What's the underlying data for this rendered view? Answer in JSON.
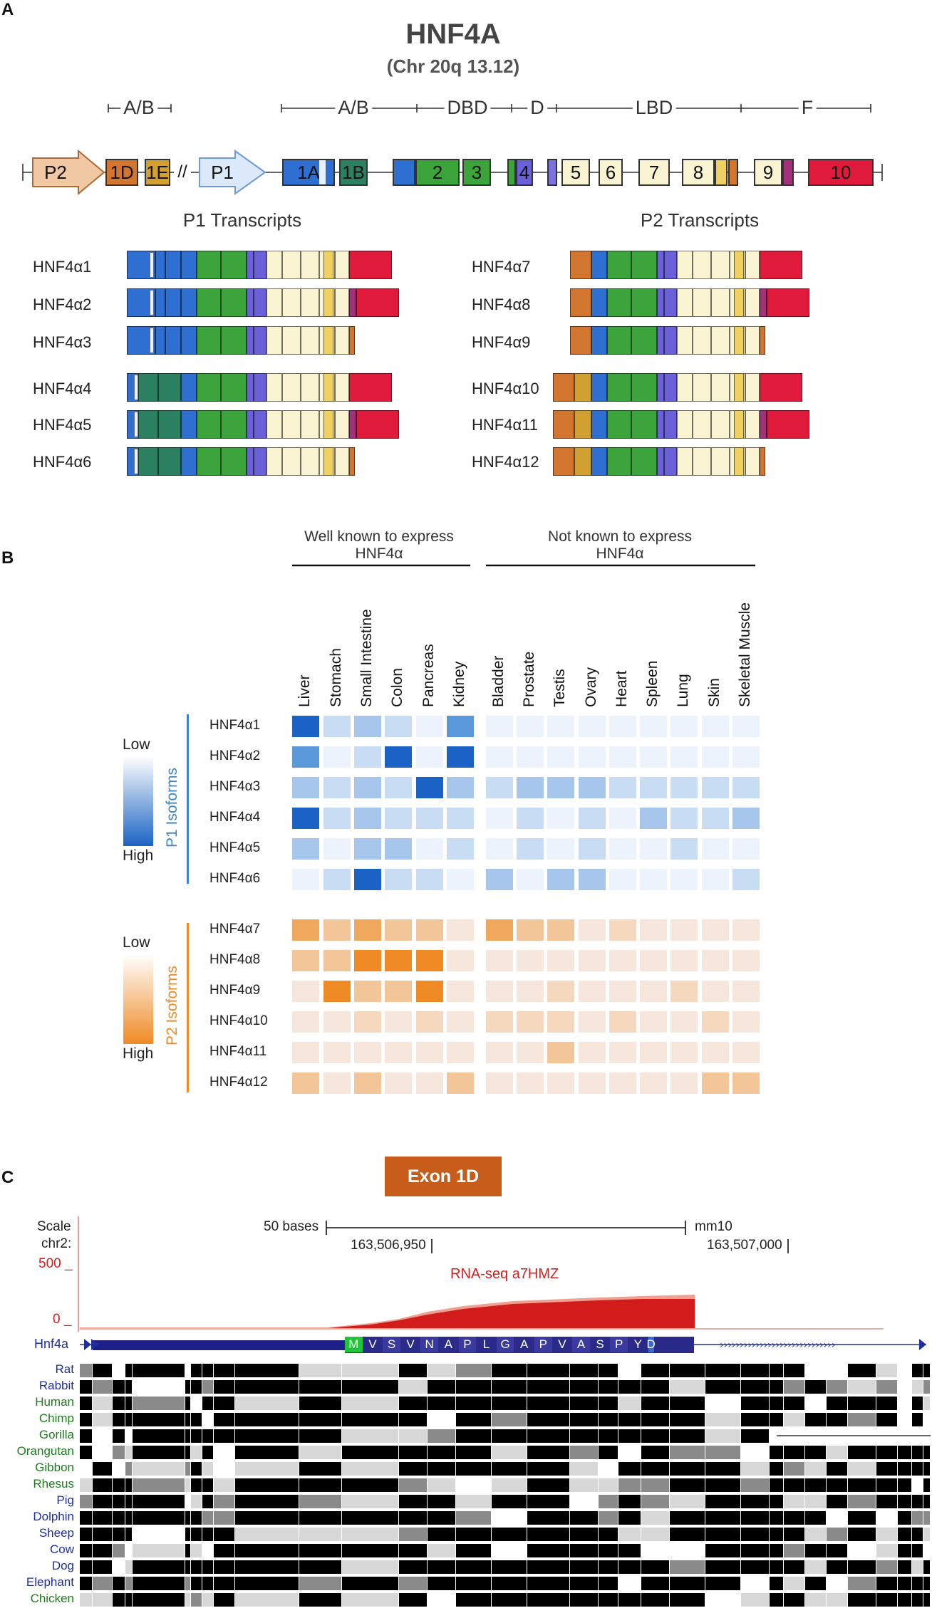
{
  "panel_a": {
    "letter": "A",
    "gene": "HNF4A",
    "locus": "(Chr 20q 13.12)",
    "domains": [
      "A/B",
      "A/B",
      "DBD",
      "D",
      "LBD",
      "F"
    ],
    "exons": [
      {
        "id": "promoter-p2",
        "label": "P2",
        "kind": "promoter",
        "color": "#f0c8a4"
      },
      {
        "id": "exon-1d",
        "label": "1D",
        "color": "#d2762f"
      },
      {
        "id": "exon-1e",
        "label": "1E",
        "color": "#d2a030"
      },
      {
        "id": "break",
        "label": "//"
      },
      {
        "id": "promoter-p1",
        "label": "P1",
        "kind": "promoter",
        "color": "#dce9fb"
      },
      {
        "id": "exon-1a",
        "label": "1A",
        "color": "#2f6fd2"
      },
      {
        "id": "exon-1b",
        "label": "1B",
        "color": "#2a8060"
      },
      {
        "id": "exon-1c",
        "label": "",
        "color": "#2f6fd2"
      },
      {
        "id": "exon-2",
        "label": "2",
        "color": "#3ba43b"
      },
      {
        "id": "exon-3",
        "label": "3",
        "color": "#3ba43b"
      },
      {
        "id": "exon-4",
        "label": "4",
        "color": "#6a60d8"
      },
      {
        "id": "exon-5",
        "label": "5",
        "color": "#faf4d2"
      },
      {
        "id": "exon-6",
        "label": "6",
        "color": "#faf4d2"
      },
      {
        "id": "exon-7",
        "label": "7",
        "color": "#faf4d2"
      },
      {
        "id": "exon-8",
        "label": "8",
        "color": "#faf4d2"
      },
      {
        "id": "exon-9",
        "label": "9",
        "color": "#faf4d2"
      },
      {
        "id": "exon-10",
        "label": "10",
        "color": "#e01a3a"
      }
    ],
    "p1_heading": "P1 Transcripts",
    "p2_heading": "P2 Transcripts",
    "p1_isoforms": [
      {
        "name": "HNF4α1",
        "first_exon": "1A",
        "ending": "10"
      },
      {
        "name": "HNF4α2",
        "first_exon": "1A",
        "ending": "10+"
      },
      {
        "name": "HNF4α3",
        "first_exon": "1A",
        "ending": "short"
      },
      {
        "name": "HNF4α4",
        "first_exon": "1B",
        "ending": "10"
      },
      {
        "name": "HNF4α5",
        "first_exon": "1B",
        "ending": "10+"
      },
      {
        "name": "HNF4α6",
        "first_exon": "1B",
        "ending": "short"
      }
    ],
    "p2_isoforms": [
      {
        "name": "HNF4α7",
        "first_exon": "1D",
        "ending": "10"
      },
      {
        "name": "HNF4α8",
        "first_exon": "1D",
        "ending": "10+"
      },
      {
        "name": "HNF4α9",
        "first_exon": "1D",
        "ending": "short"
      },
      {
        "name": "HNF4α10",
        "first_exon": "1D+1E",
        "ending": "10"
      },
      {
        "name": "HNF4α11",
        "first_exon": "1D+1E",
        "ending": "10+"
      },
      {
        "name": "HNF4α12",
        "first_exon": "1D+1E",
        "ending": "short"
      }
    ]
  },
  "panel_b": {
    "letter": "B",
    "group_known": "Well known to express HNF4α",
    "group_unknown": "Not known to express HNF4α",
    "legend": {
      "low": "Low",
      "high": "High",
      "p1_title": "P1 Isoforms",
      "p2_title": "P2 Isoforms",
      "p1_color": "#1a63c4",
      "p2_color": "#ef8a24"
    },
    "chart_data": {
      "type": "heatmap",
      "title": "",
      "scale": "0 = Low, 4 = High",
      "columns": [
        "Liver",
        "Stomach",
        "Small Intestine",
        "Colon",
        "Pancreas",
        "Kidney",
        "Bladder",
        "Prostate",
        "Testis",
        "Ovary",
        "Heart",
        "Spleen",
        "Lung",
        "Skin",
        "Skeletal Muscle"
      ],
      "p1_rows": [
        {
          "isoform": "HNF4α1",
          "values": [
            4,
            1,
            2,
            1,
            0,
            3,
            0,
            0,
            0,
            0,
            0,
            0,
            0,
            0,
            0
          ]
        },
        {
          "isoform": "HNF4α2",
          "values": [
            3,
            0,
            1,
            4,
            0,
            4,
            0,
            0,
            0,
            0,
            0,
            0,
            0,
            0,
            0
          ]
        },
        {
          "isoform": "HNF4α3",
          "values": [
            2,
            1,
            2,
            1,
            4,
            2,
            1,
            2,
            2,
            2,
            1,
            1,
            1,
            1,
            1
          ]
        },
        {
          "isoform": "HNF4α4",
          "values": [
            4,
            1,
            2,
            1,
            1,
            1,
            0,
            1,
            0,
            1,
            0,
            2,
            1,
            1,
            2
          ]
        },
        {
          "isoform": "HNF4α5",
          "values": [
            2,
            0,
            2,
            2,
            0,
            1,
            0,
            1,
            0,
            1,
            0,
            0,
            1,
            0,
            0
          ]
        },
        {
          "isoform": "HNF4α6",
          "values": [
            0,
            1,
            4,
            1,
            1,
            0,
            2,
            0,
            2,
            2,
            0,
            0,
            0,
            0,
            1
          ]
        }
      ],
      "p2_rows": [
        {
          "isoform": "HNF4α7",
          "values": [
            3,
            2,
            3,
            2,
            2,
            0,
            3,
            2,
            2,
            0,
            1,
            0,
            0,
            0,
            0
          ]
        },
        {
          "isoform": "HNF4α8",
          "values": [
            2,
            2,
            4,
            4,
            4,
            0,
            0,
            0,
            0,
            0,
            0,
            0,
            0,
            0,
            0
          ]
        },
        {
          "isoform": "HNF4α9",
          "values": [
            0,
            4,
            2,
            2,
            4,
            0,
            0,
            0,
            1,
            0,
            0,
            0,
            1,
            0,
            0
          ]
        },
        {
          "isoform": "HNF4α10",
          "values": [
            0,
            0,
            1,
            0,
            1,
            0,
            1,
            1,
            1,
            0,
            1,
            0,
            0,
            1,
            0
          ]
        },
        {
          "isoform": "HNF4α11",
          "values": [
            0,
            0,
            0,
            0,
            0,
            0,
            0,
            0,
            2,
            0,
            0,
            0,
            0,
            0,
            0
          ]
        },
        {
          "isoform": "HNF4α12",
          "values": [
            2,
            0,
            2,
            0,
            0,
            2,
            0,
            0,
            0,
            0,
            0,
            0,
            0,
            2,
            2
          ]
        }
      ]
    }
  },
  "panel_c": {
    "letter": "C",
    "banner": "Exon 1D",
    "scale_label": "Scale",
    "chrom_label": "chr2:",
    "scale_text": "50 bases",
    "assembly": "mm10",
    "coord_left": "163,506,950",
    "coord_right": "163,507,000",
    "y_max": "500 _",
    "y_min": "0 _",
    "track_label": "RNA-seq a7HMZ",
    "gene_label": "Hnf4a",
    "amino_acids": [
      "M",
      "V",
      "S",
      "V",
      "N",
      "A",
      "P",
      "L",
      "G",
      "A",
      "P",
      "V",
      "A",
      "S",
      "P",
      "Y",
      "D"
    ],
    "species": [
      {
        "name": "Rat",
        "color": "#1f2f9a"
      },
      {
        "name": "Rabbit",
        "color": "#1f2f9a"
      },
      {
        "name": "Human",
        "color": "#1f7a1f"
      },
      {
        "name": "Chimp",
        "color": "#1f7a1f"
      },
      {
        "name": "Gorilla",
        "color": "#1f7a1f"
      },
      {
        "name": "Orangutan",
        "color": "#1f7a1f"
      },
      {
        "name": "Gibbon",
        "color": "#1f7a1f"
      },
      {
        "name": "Rhesus",
        "color": "#1f7a1f"
      },
      {
        "name": "Pig",
        "color": "#1f2f9a"
      },
      {
        "name": "Dolphin",
        "color": "#1f2f9a"
      },
      {
        "name": "Sheep",
        "color": "#1f2f9a"
      },
      {
        "name": "Cow",
        "color": "#1f2f9a"
      },
      {
        "name": "Dog",
        "color": "#1f2f9a"
      },
      {
        "name": "Elephant",
        "color": "#1f2f9a"
      },
      {
        "name": "Chicken",
        "color": "#1f7a1f"
      }
    ]
  }
}
